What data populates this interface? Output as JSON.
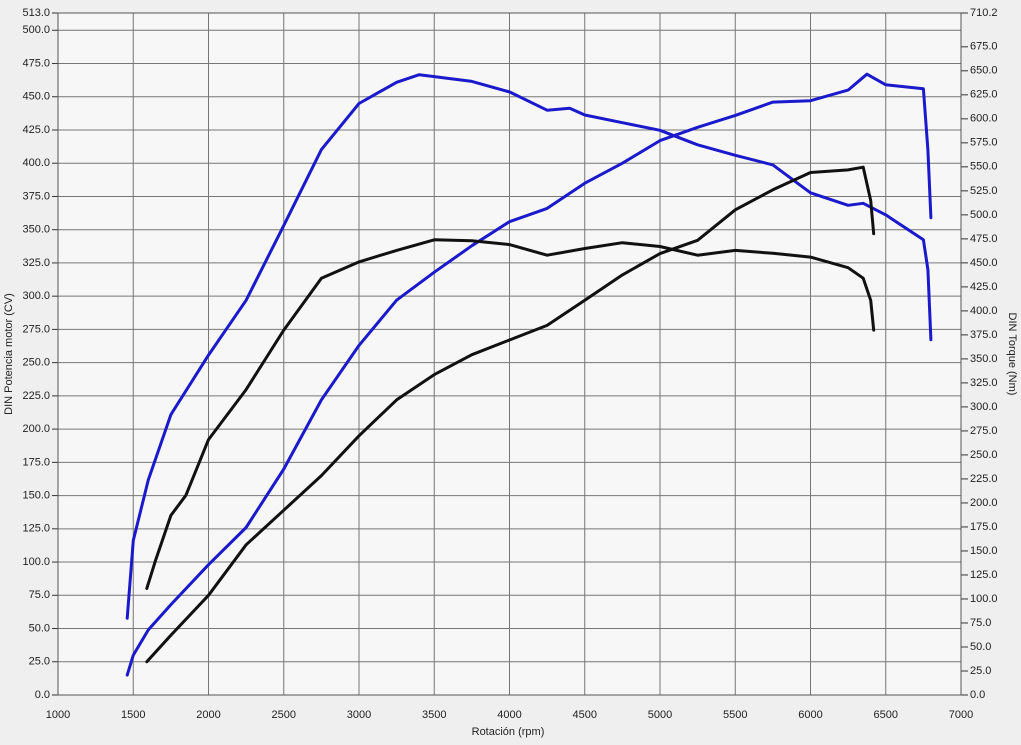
{
  "chart_data": {
    "type": "line",
    "x_label": "Rotación (rpm)",
    "y_label": "DIN Potencia motor (CV)",
    "y2_label": "DIN Torque (Nm)",
    "xlim": [
      1000,
      7000
    ],
    "xticks": [
      1000,
      1500,
      2000,
      2500,
      3000,
      3500,
      4000,
      4500,
      5000,
      5500,
      6000,
      6500,
      7000
    ],
    "ylim": [
      0,
      513
    ],
    "yticks": [
      {
        "value": 0,
        "label": "0.0"
      },
      {
        "value": 25,
        "label": "25.0"
      },
      {
        "value": 50,
        "label": "50.0"
      },
      {
        "value": 75,
        "label": "75.0"
      },
      {
        "value": 100,
        "label": "100.0"
      },
      {
        "value": 125,
        "label": "125.0"
      },
      {
        "value": 150,
        "label": "150.0"
      },
      {
        "value": 175,
        "label": "175.0"
      },
      {
        "value": 200,
        "label": "200.0"
      },
      {
        "value": 225,
        "label": "225.0"
      },
      {
        "value": 250,
        "label": "250.0"
      },
      {
        "value": 275,
        "label": "275.0"
      },
      {
        "value": 300,
        "label": "300.0"
      },
      {
        "value": 325,
        "label": "325.0"
      },
      {
        "value": 350,
        "label": "350.0"
      },
      {
        "value": 375,
        "label": "375.0"
      },
      {
        "value": 400,
        "label": "400.0"
      },
      {
        "value": 425,
        "label": "425.0"
      },
      {
        "value": 450,
        "label": "450.0"
      },
      {
        "value": 475,
        "label": "475.0"
      },
      {
        "value": 500,
        "label": "500.0"
      },
      {
        "value": 513,
        "label": "513.0"
      }
    ],
    "y2lim": [
      0,
      710.2
    ],
    "y2ticks": [
      {
        "value": 0,
        "label": "0.0"
      },
      {
        "value": 25,
        "label": "25.0"
      },
      {
        "value": 50,
        "label": "50.0"
      },
      {
        "value": 75,
        "label": "75.0"
      },
      {
        "value": 100,
        "label": "100.0"
      },
      {
        "value": 125,
        "label": "125.0"
      },
      {
        "value": 150,
        "label": "150.0"
      },
      {
        "value": 175,
        "label": "175.0"
      },
      {
        "value": 200,
        "label": "200.0"
      },
      {
        "value": 225,
        "label": "225.0"
      },
      {
        "value": 250,
        "label": "250.0"
      },
      {
        "value": 275,
        "label": "275.0"
      },
      {
        "value": 300,
        "label": "300.0"
      },
      {
        "value": 325,
        "label": "325.0"
      },
      {
        "value": 350,
        "label": "350.0"
      },
      {
        "value": 375,
        "label": "375.0"
      },
      {
        "value": 400,
        "label": "400.0"
      },
      {
        "value": 425,
        "label": "425.0"
      },
      {
        "value": 450,
        "label": "450.0"
      },
      {
        "value": 475,
        "label": "475.0"
      },
      {
        "value": 500,
        "label": "500.0"
      },
      {
        "value": 525,
        "label": "525.0"
      },
      {
        "value": 550,
        "label": "550.0"
      },
      {
        "value": 575,
        "label": "575.0"
      },
      {
        "value": 600,
        "label": "600.0"
      },
      {
        "value": 625,
        "label": "625.0"
      },
      {
        "value": 650,
        "label": "650.0"
      },
      {
        "value": 675,
        "label": "675.0"
      },
      {
        "value": 710.2,
        "label": "710.2"
      }
    ],
    "grid": true,
    "series": [
      {
        "color": "#1a1acc",
        "axis": "y",
        "x": [
          1460,
          1500,
          1600,
          1750,
          2000,
          2250,
          2500,
          2750,
          3000,
          3250,
          3500,
          3750,
          4000,
          4250,
          4500,
          4750,
          5000,
          5250,
          5500,
          5750,
          6000,
          6250,
          6375,
          6500,
          6750,
          6780,
          6800
        ],
        "values": [
          15,
          30,
          49,
          68,
          98,
          126,
          170,
          222,
          263,
          297,
          318,
          338,
          356,
          366,
          385,
          400,
          417,
          427,
          436,
          446,
          447,
          455,
          467,
          459,
          456,
          410,
          359
        ]
      },
      {
        "color": "#1a1acc",
        "axis": "y2",
        "x": [
          1460,
          1500,
          1600,
          1750,
          2000,
          2250,
          2500,
          2750,
          3000,
          3250,
          3400,
          3500,
          3750,
          4000,
          4250,
          4400,
          4500,
          4750,
          5000,
          5250,
          5500,
          5750,
          6000,
          6250,
          6350,
          6500,
          6750,
          6780,
          6800
        ],
        "values": [
          80,
          161,
          224,
          292,
          354,
          411,
          489,
          568,
          616,
          638,
          646,
          644,
          639,
          628,
          609,
          611,
          604,
          596,
          588,
          573,
          562,
          552,
          523,
          510,
          512,
          500,
          474,
          443,
          370
        ]
      },
      {
        "color": "#111111",
        "axis": "y",
        "x": [
          1590,
          1750,
          2000,
          2250,
          2500,
          2750,
          3000,
          3250,
          3500,
          3750,
          4000,
          4250,
          4500,
          4750,
          5000,
          5250,
          5500,
          5750,
          6000,
          6250,
          6350,
          6400,
          6420
        ],
        "values": [
          25,
          45,
          75,
          113,
          139,
          165,
          195,
          222,
          241,
          256,
          267,
          278,
          297,
          316,
          332,
          342,
          365,
          380,
          393,
          395,
          397,
          372,
          347
        ]
      },
      {
        "color": "#111111",
        "axis": "y2",
        "x": [
          1590,
          1650,
          1750,
          1850,
          2000,
          2250,
          2500,
          2750,
          3000,
          3250,
          3500,
          3750,
          4000,
          4250,
          4500,
          4750,
          5000,
          5250,
          5500,
          5750,
          6000,
          6250,
          6350,
          6400,
          6420
        ],
        "values": [
          111,
          141,
          187,
          208,
          266,
          318,
          380,
          434,
          451,
          463,
          474,
          473,
          469,
          458,
          465,
          471,
          467,
          458,
          463,
          460,
          456,
          445,
          434,
          411,
          380
        ]
      }
    ]
  }
}
